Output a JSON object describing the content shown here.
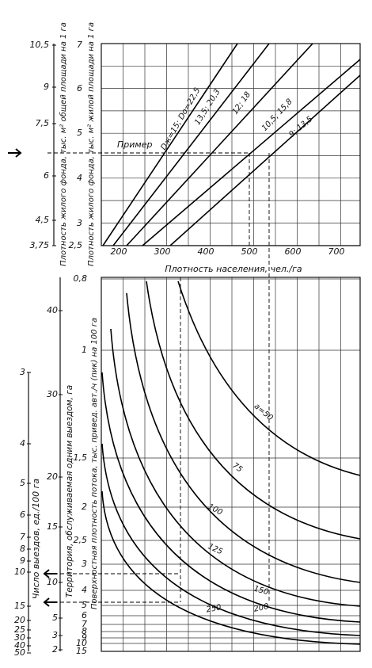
{
  "top_chart": {
    "outer_axis": {
      "label": "Плотность жилого фонда, тыс. м² общей площади на 1 га",
      "ticks": [
        "10,5",
        "9",
        "7,5",
        "6",
        "4,5",
        "3,75"
      ]
    },
    "inner_axis": {
      "label": "Плотность жилого фонда, тыс. м² жилой площади на 1 га",
      "ticks": [
        "7",
        "6",
        "5",
        "4",
        "3",
        "2,5"
      ]
    },
    "x_axis": {
      "label": "Плотность населения, чел./га",
      "ticks": [
        "200",
        "300",
        "400",
        "500",
        "600",
        "700"
      ]
    },
    "example_label": "Пример",
    "line_labels": [
      "Dж=15; Dо=22,5",
      "13,5; 20,3",
      "12; 18",
      "10,5; 15,8",
      "9; 13,5"
    ]
  },
  "bottom_chart": {
    "outer_axis": {
      "label": "Число выездов, ед./100 га",
      "ticks": [
        "3",
        "4",
        "5",
        "6",
        "7",
        "8",
        "9",
        "10",
        "15",
        "20",
        "25",
        "30",
        "40",
        "50"
      ]
    },
    "middle_axis": {
      "label": "Территория, обслуживаемая одним выездом, га",
      "ticks": [
        "40",
        "30",
        "20",
        "15",
        "10",
        "5",
        "3",
        "2"
      ]
    },
    "inner_axis": {
      "label": "Поверхностная плотность потока, тыс. привед. авт./ч (пик) на 100 га",
      "ticks": [
        "0,8",
        "1",
        "1,5",
        "2",
        "2,5",
        "3",
        "4",
        "5",
        "6",
        "7",
        "8",
        "9",
        "10",
        "15"
      ]
    },
    "curve_labels": [
      "a=50",
      "75",
      "100",
      "125",
      "150",
      "200",
      "250"
    ]
  }
}
